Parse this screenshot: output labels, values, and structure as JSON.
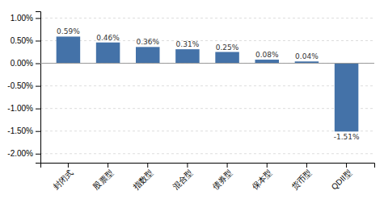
{
  "chart_data": {
    "type": "bar",
    "categories": [
      "封闭式",
      "股票型",
      "指数型",
      "混合型",
      "债券型",
      "保本型",
      "货币型",
      "QDII型"
    ],
    "values": [
      0.0059,
      0.0046,
      0.0036,
      0.0031,
      0.0025,
      0.0008,
      0.0004,
      -0.0151
    ],
    "value_labels": [
      "0.59%",
      "0.46%",
      "0.36%",
      "0.31%",
      "0.25%",
      "0.08%",
      "0.04%",
      "-1.51%"
    ],
    "data_labels": true,
    "color": "#4472a8",
    "ylim": [
      -0.022,
      0.0115
    ],
    "yticks": [
      {
        "value": -0.02,
        "label": "-2.00%"
      },
      {
        "value": -0.015,
        "label": "-1.50%"
      },
      {
        "value": -0.01,
        "label": "-1.00%"
      },
      {
        "value": -0.005,
        "label": "-0.50%"
      },
      {
        "value": 0.0,
        "label": "0.00%"
      },
      {
        "value": 0.005,
        "label": "0.50%"
      },
      {
        "value": 0.01,
        "label": "1.00%"
      }
    ],
    "grid": true
  }
}
